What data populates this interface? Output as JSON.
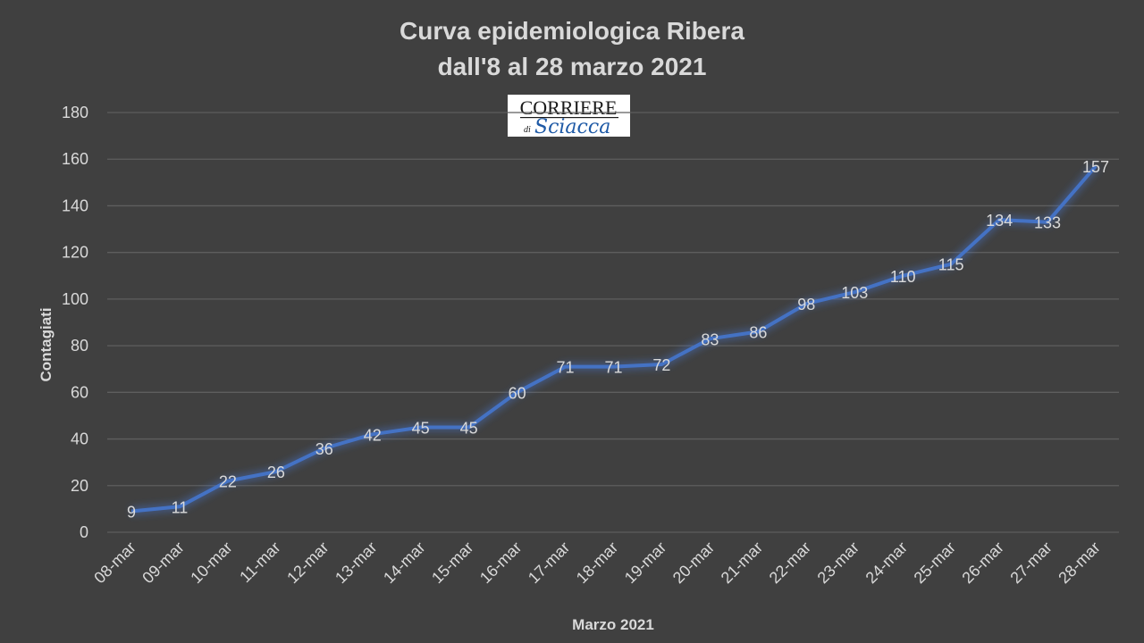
{
  "chart_data": {
    "type": "line",
    "title": [
      "Curva epidemiologica Ribera",
      "dall'8 al 28 marzo 2021"
    ],
    "xlabel": "Marzo 2021",
    "ylabel": "Contagiati",
    "ylim": [
      0,
      180
    ],
    "yticks": [
      0,
      20,
      40,
      60,
      80,
      100,
      120,
      140,
      160,
      180
    ],
    "grid": true,
    "legend": "none",
    "series_color": "#4472c4",
    "categories": [
      "08-mar",
      "09-mar",
      "10-mar",
      "11-mar",
      "12-mar",
      "13-mar",
      "14-mar",
      "15-mar",
      "16-mar",
      "17-mar",
      "18-mar",
      "19-mar",
      "20-mar",
      "21-mar",
      "22-mar",
      "23-mar",
      "24-mar",
      "25-mar",
      "26-mar",
      "27-mar",
      "28-mar"
    ],
    "values": [
      9,
      11,
      22,
      26,
      36,
      42,
      45,
      45,
      60,
      71,
      71,
      72,
      83,
      86,
      98,
      103,
      110,
      115,
      134,
      133,
      157
    ]
  },
  "logo": {
    "line1": "CORRIERE",
    "line2_small": "di",
    "line2_script": "Sciacca"
  }
}
